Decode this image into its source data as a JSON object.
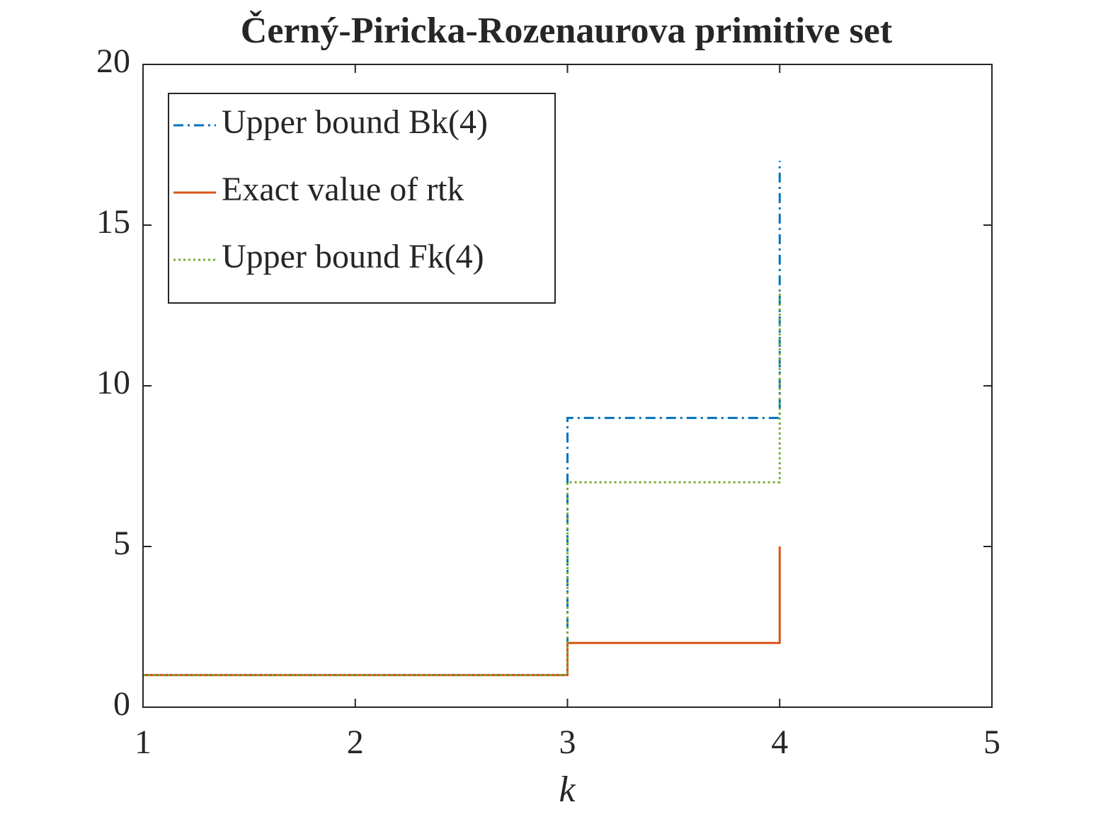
{
  "chart_data": {
    "type": "stairs",
    "title": "Černý-Piricka-Rozenaurova primitive set",
    "x_label": "k",
    "x": [
      1,
      2,
      3,
      4
    ],
    "series": [
      {
        "name": "Upper bound Bk(4)",
        "color": "#0072bd",
        "dash": "dashdot",
        "values": [
          1,
          1,
          9,
          17
        ]
      },
      {
        "name": "Exact value of rtk",
        "color": "#d95319",
        "dash": "solid",
        "values": [
          1,
          1,
          2,
          5
        ]
      },
      {
        "name": "Upper bound Fk(4)",
        "color": "#77ac30",
        "dash": "dotted",
        "values": [
          1,
          1,
          7,
          13
        ]
      }
    ],
    "xlim": [
      1,
      5
    ],
    "xticks": [
      1,
      2,
      3,
      4,
      5
    ],
    "ylim": [
      0,
      20
    ],
    "yticks": [
      0,
      5,
      10,
      15,
      20
    ],
    "grid": false,
    "legend_position": "upper-left"
  }
}
